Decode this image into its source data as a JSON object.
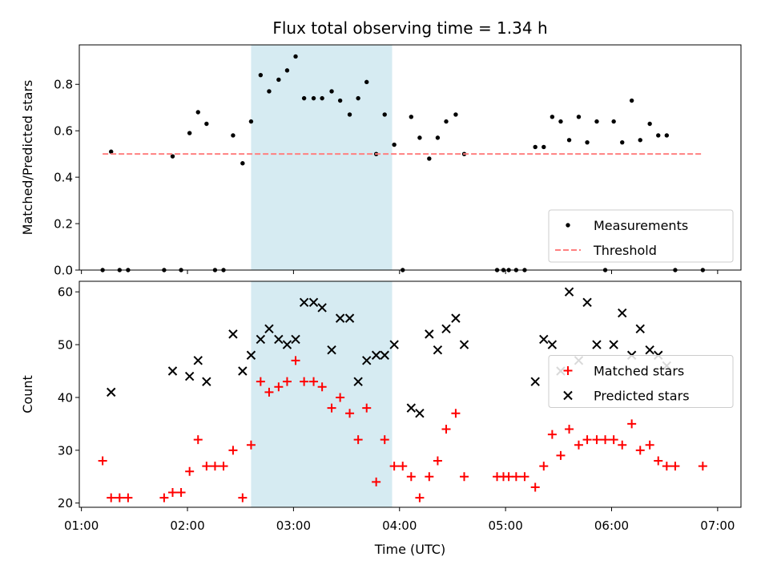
{
  "chart_data": {
    "title": "Flux total observing time = 1.34 h",
    "xlabel": "Time (UTC)",
    "x_unit": "hours UTC",
    "xlim": [
      0.98,
      7.22
    ],
    "x_ticks": [
      {
        "value": 1,
        "label": "01:00"
      },
      {
        "value": 2,
        "label": "02:00"
      },
      {
        "value": 3,
        "label": "03:00"
      },
      {
        "value": 4,
        "label": "04:00"
      },
      {
        "value": 5,
        "label": "05:00"
      },
      {
        "value": 6,
        "label": "06:00"
      },
      {
        "value": 7,
        "label": "07:00"
      }
    ],
    "shaded_interval": {
      "x": [
        2.6,
        3.93
      ],
      "color": "#add8e6"
    },
    "panels": [
      {
        "type": "scatter",
        "ylabel": "Matched/Predicted stars",
        "ylim": [
          0,
          0.97
        ],
        "y_ticks": [
          "0.0",
          "0.2",
          "0.4",
          "0.6",
          "0.8"
        ],
        "y_tick_values": [
          0,
          0.2,
          0.4,
          0.6,
          0.8
        ],
        "legend_position": "lower-right",
        "series": [
          {
            "name": "Measurements",
            "kind": "dots",
            "color": "#000000",
            "x": [
              1.2,
              1.28,
              1.36,
              1.44,
              1.78,
              1.86,
              1.94,
              2.02,
              2.1,
              2.18,
              2.26,
              2.34,
              2.43,
              2.52,
              2.6,
              2.69,
              2.77,
              2.86,
              2.94,
              3.02,
              3.1,
              3.19,
              3.27,
              3.36,
              3.44,
              3.53,
              3.61,
              3.69,
              3.78,
              3.86,
              3.95,
              4.03,
              4.11,
              4.19,
              4.28,
              4.36,
              4.44,
              4.53,
              4.61,
              4.92,
              4.98,
              5.03,
              5.1,
              5.18,
              5.28,
              5.36,
              5.44,
              5.52,
              5.6,
              5.69,
              5.77,
              5.86,
              5.94,
              6.02,
              6.1,
              6.19,
              6.27,
              6.36,
              6.44,
              6.52,
              6.6,
              6.86
            ],
            "y": [
              0.0,
              0.51,
              0.0,
              0.0,
              0.0,
              0.49,
              0.0,
              0.59,
              0.68,
              0.63,
              0.0,
              0.0,
              0.58,
              0.46,
              0.64,
              0.84,
              0.77,
              0.82,
              0.86,
              0.92,
              0.74,
              0.74,
              0.74,
              0.77,
              0.73,
              0.67,
              0.74,
              0.81,
              0.5,
              0.67,
              0.54,
              0.0,
              0.66,
              0.57,
              0.48,
              0.57,
              0.64,
              0.67,
              0.5,
              0.0,
              0.0,
              0.0,
              0.0,
              0.0,
              0.53,
              0.53,
              0.66,
              0.64,
              0.56,
              0.66,
              0.55,
              0.64,
              0.0,
              0.64,
              0.55,
              0.73,
              0.56,
              0.63,
              0.58,
              0.58,
              0.0,
              0.0
            ]
          },
          {
            "name": "Threshold",
            "kind": "dashed-line",
            "color": "#ff8080",
            "x": [
              1.2,
              6.86
            ],
            "y": [
              0.5,
              0.5
            ]
          }
        ]
      },
      {
        "type": "scatter",
        "ylabel": "Count",
        "ylim": [
          19.2,
          62
        ],
        "y_ticks": [
          "20",
          "30",
          "40",
          "50",
          "60"
        ],
        "y_tick_values": [
          20,
          30,
          40,
          50,
          60
        ],
        "legend_position": "center-right",
        "series": [
          {
            "name": "Matched stars",
            "kind": "plus",
            "color": "#ff0000",
            "x": [
              1.2,
              1.28,
              1.36,
              1.44,
              1.78,
              1.86,
              1.94,
              2.02,
              2.1,
              2.18,
              2.26,
              2.34,
              2.43,
              2.52,
              2.6,
              2.69,
              2.77,
              2.86,
              2.94,
              3.02,
              3.1,
              3.19,
              3.27,
              3.36,
              3.44,
              3.53,
              3.61,
              3.69,
              3.78,
              3.86,
              3.95,
              4.03,
              4.11,
              4.19,
              4.28,
              4.36,
              4.44,
              4.53,
              4.61,
              4.92,
              4.98,
              5.03,
              5.1,
              5.18,
              5.28,
              5.36,
              5.44,
              5.52,
              5.6,
              5.69,
              5.77,
              5.86,
              5.94,
              6.02,
              6.1,
              6.19,
              6.27,
              6.36,
              6.44,
              6.52,
              6.6,
              6.86
            ],
            "y": [
              28,
              21,
              21,
              21,
              21,
              22,
              22,
              26,
              32,
              27,
              27,
              27,
              30,
              21,
              31,
              43,
              41,
              42,
              43,
              47,
              43,
              43,
              42,
              38,
              40,
              37,
              32,
              38,
              24,
              32,
              27,
              27,
              25,
              21,
              25,
              28,
              34,
              37,
              25,
              25,
              25,
              25,
              25,
              25,
              23,
              27,
              33,
              29,
              34,
              31,
              32,
              32,
              32,
              32,
              31,
              35,
              30,
              31,
              28,
              27,
              27,
              27
            ]
          },
          {
            "name": "Predicted stars",
            "kind": "x",
            "color": "#000000",
            "x": [
              1.28,
              1.86,
              2.02,
              2.1,
              2.18,
              2.43,
              2.52,
              2.6,
              2.69,
              2.77,
              2.86,
              2.94,
              3.02,
              3.1,
              3.19,
              3.27,
              3.36,
              3.44,
              3.53,
              3.61,
              3.69,
              3.78,
              3.86,
              3.95,
              4.11,
              4.19,
              4.28,
              4.36,
              4.44,
              4.53,
              4.61,
              5.28,
              5.36,
              5.44,
              5.52,
              5.6,
              5.69,
              5.77,
              5.86,
              6.02,
              6.1,
              6.19,
              6.27,
              6.36,
              6.44,
              6.52
            ],
            "y": [
              41,
              45,
              44,
              47,
              43,
              52,
              45,
              48,
              51,
              53,
              51,
              50,
              51,
              58,
              58,
              57,
              49,
              55,
              55,
              43,
              47,
              48,
              48,
              50,
              38,
              37,
              52,
              49,
              53,
              55,
              50,
              43,
              51,
              50,
              45,
              60,
              47,
              58,
              50,
              50,
              56,
              48,
              53,
              49,
              48,
              46
            ]
          }
        ]
      }
    ]
  }
}
